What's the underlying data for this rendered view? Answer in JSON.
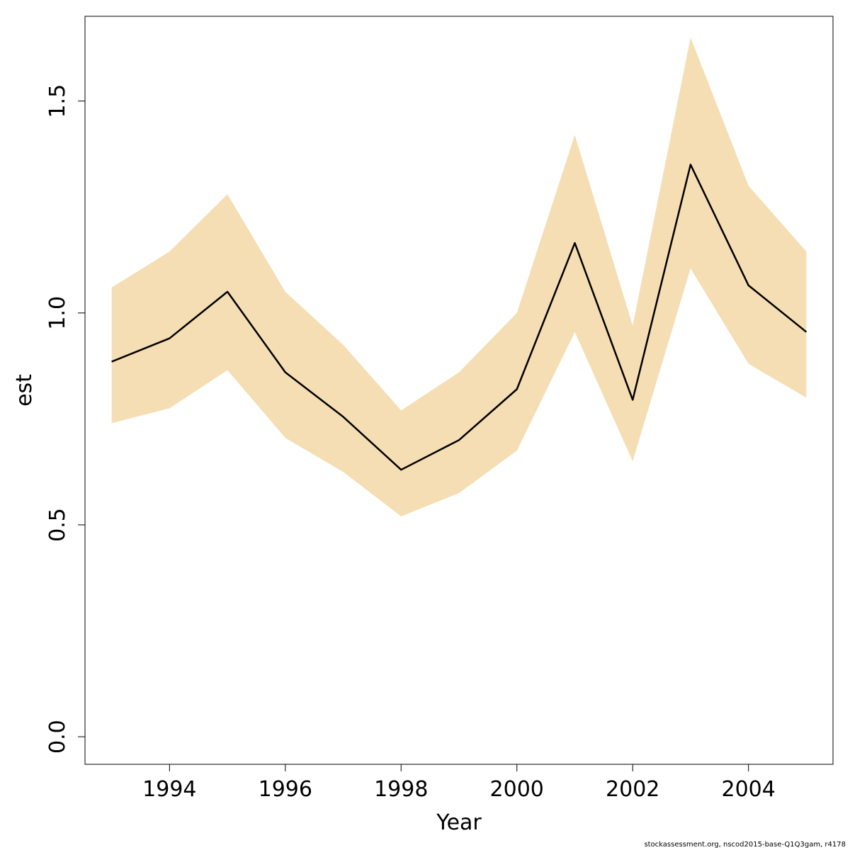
{
  "chart_data": {
    "type": "area",
    "title": "",
    "xlabel": "Year",
    "ylabel": "est",
    "xlim": [
      1992.54,
      2005.46
    ],
    "ylim": [
      -0.065,
      1.7
    ],
    "x_ticks": [
      1994,
      1996,
      1998,
      2000,
      2002,
      2004
    ],
    "x_tick_labels": [
      "1994",
      "1996",
      "1998",
      "2000",
      "2002",
      "2004"
    ],
    "y_ticks": [
      0.0,
      0.5,
      1.0,
      1.5
    ],
    "y_tick_labels": [
      "0.0",
      "0.5",
      "1.0",
      "1.5"
    ],
    "grid": false,
    "x": [
      1993,
      1994,
      1995,
      1996,
      1997,
      1998,
      1999,
      2000,
      2001,
      2002,
      2003,
      2004,
      2005
    ],
    "series": [
      {
        "values": [
          0.885,
          0.94,
          1.05,
          0.86,
          0.755,
          0.63,
          0.7,
          0.82,
          1.165,
          0.795,
          1.35,
          1.065,
          0.955
        ],
        "lower": [
          0.74,
          0.775,
          0.865,
          0.705,
          0.625,
          0.52,
          0.575,
          0.675,
          0.955,
          0.65,
          1.105,
          0.88,
          0.8
        ],
        "upper": [
          1.06,
          1.145,
          1.28,
          1.05,
          0.925,
          0.77,
          0.86,
          1.0,
          1.42,
          0.97,
          1.65,
          1.3,
          1.145
        ]
      }
    ],
    "colors": {
      "band": "#f5deb3",
      "line": "#000000",
      "axis": "#000000"
    }
  },
  "footer": {
    "note": "stockassessment.org, nscod2015-base-Q1Q3gam, r4178"
  }
}
